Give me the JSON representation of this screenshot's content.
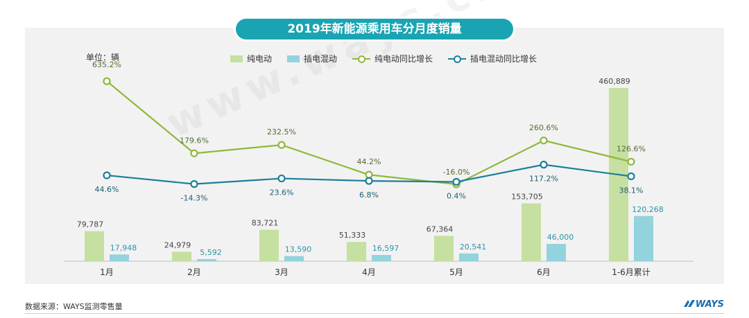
{
  "title": "2019年新能源乘用车分月度销量",
  "unit_label": "单位：辆",
  "source_label": "数据来源：WAYS监测零售量",
  "logo_text": "WAYS",
  "watermark_text": "www.ways.cn",
  "colors": {
    "title_bg": "#1aa4b3",
    "bev_bar": "#c5e0a0",
    "phev_bar": "#93d3dd",
    "bev_line": "#8db83a",
    "phev_line": "#1b7f9a",
    "panel_bg": "#f2f2f2"
  },
  "chart_data": {
    "type": "bar",
    "title": "2019年新能源乘用车分月度销量",
    "ylabel": "单位：辆",
    "categories": [
      "1月",
      "2月",
      "3月",
      "4月",
      "5月",
      "6月",
      "1-6月累计"
    ],
    "series": [
      {
        "name": "纯电动",
        "type": "bar",
        "values": [
          79787,
          24979,
          83721,
          51333,
          67364,
          153705,
          460889
        ],
        "labels": [
          "79,787",
          "24,979",
          "83,721",
          "51,333",
          "67,364",
          "153,705",
          "460,889"
        ]
      },
      {
        "name": "插电混动",
        "type": "bar",
        "values": [
          17948,
          5592,
          13590,
          16597,
          20541,
          46000,
          120268
        ],
        "labels": [
          "17,948",
          "5,592",
          "13,590",
          "16,597",
          "20,541",
          "46,000",
          "120,268"
        ]
      },
      {
        "name": "纯电动同比增长",
        "type": "line",
        "values": [
          635.2,
          179.6,
          232.5,
          44.2,
          -16.0,
          260.6,
          126.6
        ],
        "labels": [
          "635.2%",
          "179.6%",
          "232.5%",
          "44.2%",
          "-16.0%",
          "260.6%",
          "126.6%"
        ]
      },
      {
        "name": "插电混动同比增长",
        "type": "line",
        "values": [
          44.6,
          -14.3,
          23.6,
          6.8,
          0.4,
          117.2,
          38.1
        ],
        "labels": [
          "44.6%",
          "-14.3%",
          "23.6%",
          "6.8%",
          "0.4%",
          "117.2%",
          "38.1%"
        ]
      }
    ],
    "grid": false,
    "legend": "top"
  }
}
